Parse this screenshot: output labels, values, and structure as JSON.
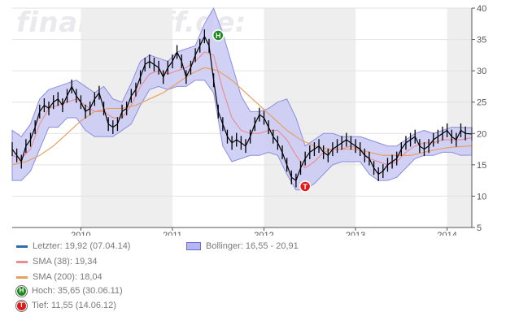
{
  "brand": {
    "watermark": "finanztreff.de:"
  },
  "colors": {
    "band_fill": "#c9c9f5",
    "band_stroke": "#8c8ce0",
    "price": "#000000",
    "sma38": "#e89090",
    "sma200": "#e8a060",
    "last": "#2f6db3",
    "high_marker": "#1a8a1a",
    "low_marker": "#e01a1a",
    "shade": "#eeeeee"
  },
  "legend": {
    "last": "Letzter: 19,92 (07.04.14)",
    "bollinger": "Bollinger: 16,55 - 20,91",
    "sma38": "SMA (38): 19,34",
    "sma200": "SMA (200): 18,04",
    "high": "Hoch: 35,65 (30.06.11)",
    "low": "Tief: 11,55 (14.06.12)",
    "high_marker_label": "H",
    "low_marker_label": "T"
  },
  "chart_data": {
    "type": "line",
    "title": "",
    "xlabel": "",
    "ylabel": "",
    "ylim": [
      5,
      40
    ],
    "yticks": [
      "5",
      "10",
      "15",
      "20",
      "25",
      "30",
      "35",
      "40"
    ],
    "xticks": [
      "2010",
      "2011",
      "2012",
      "2013",
      "2014"
    ],
    "xlim": [
      2009.25,
      2014.27
    ],
    "shaded_years": [
      [
        2010,
        2011
      ],
      [
        2012,
        2013
      ],
      [
        2014,
        2014.27
      ]
    ],
    "grid": true,
    "legend_position": "bottom",
    "series": [
      {
        "key": "price",
        "x": [
          2009.25,
          2009.3,
          2009.35,
          2009.4,
          2009.45,
          2009.5,
          2009.55,
          2009.6,
          2009.65,
          2009.7,
          2009.75,
          2009.8,
          2009.85,
          2009.9,
          2009.95,
          2010.0,
          2010.05,
          2010.1,
          2010.15,
          2010.2,
          2010.25,
          2010.3,
          2010.35,
          2010.4,
          2010.45,
          2010.5,
          2010.55,
          2010.6,
          2010.65,
          2010.7,
          2010.75,
          2010.8,
          2010.85,
          2010.9,
          2010.95,
          2011.0,
          2011.05,
          2011.1,
          2011.15,
          2011.2,
          2011.25,
          2011.3,
          2011.35,
          2011.4,
          2011.45,
          2011.5,
          2011.55,
          2011.6,
          2011.65,
          2011.7,
          2011.75,
          2011.8,
          2011.85,
          2011.9,
          2011.95,
          2012.0,
          2012.05,
          2012.1,
          2012.15,
          2012.2,
          2012.25,
          2012.3,
          2012.35,
          2012.4,
          2012.45,
          2012.5,
          2012.55,
          2012.6,
          2012.65,
          2012.7,
          2012.75,
          2012.8,
          2012.85,
          2012.9,
          2012.95,
          2013.0,
          2013.05,
          2013.1,
          2013.15,
          2013.2,
          2013.25,
          2013.3,
          2013.35,
          2013.4,
          2013.45,
          2013.5,
          2013.55,
          2013.6,
          2013.65,
          2013.7,
          2013.75,
          2013.8,
          2013.85,
          2013.9,
          2013.95,
          2014.0,
          2014.05,
          2014.1,
          2014.15,
          2014.2,
          2014.27
        ],
        "y": [
          17.5,
          16.5,
          15.5,
          18.0,
          19.0,
          21.0,
          23.5,
          24.5,
          24.0,
          25.0,
          25.5,
          24.5,
          26.0,
          27.5,
          26.0,
          25.0,
          23.5,
          24.0,
          25.5,
          26.5,
          24.0,
          21.5,
          21.0,
          21.5,
          23.5,
          24.0,
          26.0,
          27.0,
          29.0,
          31.0,
          31.5,
          31.0,
          30.5,
          29.0,
          30.5,
          31.5,
          33.0,
          31.5,
          29.0,
          30.5,
          32.5,
          34.0,
          35.5,
          34.0,
          28.5,
          23.5,
          21.5,
          19.5,
          18.5,
          19.0,
          18.5,
          18.0,
          19.5,
          21.5,
          23.0,
          22.5,
          21.0,
          19.5,
          18.5,
          17.0,
          15.0,
          13.0,
          12.5,
          14.5,
          16.0,
          17.0,
          17.5,
          18.0,
          17.0,
          16.5,
          17.5,
          18.0,
          18.5,
          19.0,
          18.5,
          18.0,
          17.5,
          16.5,
          16.0,
          14.5,
          13.5,
          14.0,
          15.0,
          15.5,
          16.0,
          17.5,
          18.5,
          19.0,
          19.5,
          18.0,
          17.5,
          18.0,
          19.0,
          19.5,
          20.0,
          20.5,
          19.5,
          19.0,
          20.5,
          20.0,
          19.92
        ]
      },
      {
        "key": "bollinger_upper",
        "x": [
          2009.25,
          2009.35,
          2009.45,
          2009.55,
          2009.65,
          2009.75,
          2009.85,
          2009.95,
          2010.05,
          2010.15,
          2010.25,
          2010.35,
          2010.45,
          2010.55,
          2010.65,
          2010.75,
          2010.85,
          2010.95,
          2011.05,
          2011.15,
          2011.25,
          2011.35,
          2011.45,
          2011.55,
          2011.65,
          2011.75,
          2011.85,
          2011.95,
          2012.05,
          2012.15,
          2012.25,
          2012.35,
          2012.45,
          2012.55,
          2012.65,
          2012.75,
          2012.85,
          2012.95,
          2013.05,
          2013.15,
          2013.25,
          2013.35,
          2013.45,
          2013.55,
          2013.65,
          2013.75,
          2013.85,
          2013.95,
          2014.05,
          2014.15,
          2014.27
        ],
        "y": [
          20.5,
          19.5,
          21.5,
          25.5,
          27.0,
          27.5,
          28.0,
          28.5,
          27.5,
          26.5,
          27.5,
          25.5,
          25.0,
          28.0,
          31.5,
          32.5,
          32.0,
          31.5,
          33.0,
          33.5,
          34.0,
          37.5,
          40.0,
          36.0,
          31.0,
          26.0,
          23.5,
          23.5,
          24.0,
          25.0,
          25.5,
          22.5,
          18.0,
          19.0,
          20.0,
          20.0,
          19.5,
          19.5,
          19.5,
          19.0,
          18.5,
          18.0,
          18.0,
          19.0,
          20.0,
          20.5,
          20.0,
          20.5,
          21.0,
          21.0,
          20.91
        ]
      },
      {
        "key": "bollinger_lower",
        "x": [
          2009.25,
          2009.35,
          2009.45,
          2009.55,
          2009.65,
          2009.75,
          2009.85,
          2009.95,
          2010.05,
          2010.15,
          2010.25,
          2010.35,
          2010.45,
          2010.55,
          2010.65,
          2010.75,
          2010.85,
          2010.95,
          2011.05,
          2011.15,
          2011.25,
          2011.35,
          2011.45,
          2011.55,
          2011.65,
          2011.75,
          2011.85,
          2011.95,
          2012.05,
          2012.15,
          2012.25,
          2012.35,
          2012.45,
          2012.55,
          2012.65,
          2012.75,
          2012.85,
          2012.95,
          2013.05,
          2013.15,
          2013.25,
          2013.35,
          2013.45,
          2013.55,
          2013.65,
          2013.75,
          2013.85,
          2013.95,
          2014.05,
          2014.15,
          2014.27
        ],
        "y": [
          12.5,
          12.5,
          14.0,
          17.5,
          21.0,
          21.0,
          22.5,
          22.5,
          20.5,
          19.5,
          19.5,
          19.5,
          20.5,
          21.5,
          24.5,
          27.0,
          27.5,
          27.0,
          27.5,
          27.5,
          28.5,
          28.5,
          26.5,
          18.0,
          15.5,
          16.0,
          16.5,
          16.5,
          17.0,
          16.5,
          13.5,
          11.0,
          11.0,
          12.0,
          13.5,
          15.0,
          15.5,
          15.5,
          15.5,
          13.5,
          12.5,
          12.5,
          13.0,
          14.5,
          16.0,
          16.5,
          16.5,
          17.0,
          17.0,
          16.5,
          16.55
        ]
      },
      {
        "key": "sma38",
        "x": [
          2009.25,
          2009.35,
          2009.45,
          2009.55,
          2009.65,
          2009.75,
          2009.85,
          2009.95,
          2010.05,
          2010.15,
          2010.25,
          2010.35,
          2010.45,
          2010.55,
          2010.65,
          2010.75,
          2010.85,
          2010.95,
          2011.05,
          2011.15,
          2011.25,
          2011.35,
          2011.45,
          2011.55,
          2011.65,
          2011.75,
          2011.85,
          2011.95,
          2012.05,
          2012.15,
          2012.25,
          2012.35,
          2012.45,
          2012.55,
          2012.65,
          2012.75,
          2012.85,
          2012.95,
          2013.05,
          2013.15,
          2013.25,
          2013.35,
          2013.45,
          2013.55,
          2013.65,
          2013.75,
          2013.85,
          2013.95,
          2014.05,
          2014.15,
          2014.27
        ],
        "y": [
          16.5,
          16.0,
          17.5,
          21.5,
          24.0,
          24.5,
          25.0,
          25.5,
          24.5,
          23.5,
          23.5,
          22.5,
          22.5,
          24.5,
          27.5,
          29.5,
          30.0,
          29.5,
          30.0,
          30.5,
          31.5,
          33.0,
          32.5,
          27.0,
          22.5,
          20.5,
          20.0,
          20.0,
          20.5,
          20.5,
          19.0,
          16.5,
          14.5,
          15.5,
          17.0,
          17.5,
          17.5,
          18.0,
          17.5,
          16.0,
          15.5,
          15.0,
          15.5,
          17.0,
          18.0,
          18.5,
          18.5,
          19.0,
          19.0,
          19.0,
          19.34
        ]
      },
      {
        "key": "sma200",
        "x": [
          2009.25,
          2009.4,
          2009.55,
          2009.7,
          2009.85,
          2010.0,
          2010.15,
          2010.3,
          2010.45,
          2010.6,
          2010.75,
          2010.9,
          2011.05,
          2011.2,
          2011.35,
          2011.5,
          2011.65,
          2011.8,
          2011.95,
          2012.1,
          2012.25,
          2012.4,
          2012.55,
          2012.7,
          2012.85,
          2013.0,
          2013.15,
          2013.3,
          2013.45,
          2013.6,
          2013.75,
          2013.9,
          2014.05,
          2014.27
        ],
        "y": [
          15.0,
          15.5,
          16.5,
          18.0,
          20.0,
          22.0,
          23.5,
          24.0,
          24.0,
          24.5,
          25.5,
          26.5,
          28.0,
          29.5,
          30.5,
          30.0,
          28.5,
          26.5,
          24.5,
          22.5,
          20.5,
          19.0,
          18.0,
          17.5,
          17.5,
          17.5,
          17.0,
          16.5,
          16.5,
          16.5,
          17.0,
          17.5,
          17.8,
          18.04
        ]
      }
    ],
    "markers": [
      {
        "key": "high",
        "x": 2011.5,
        "y": 35.65
      },
      {
        "key": "low",
        "x": 2012.45,
        "y": 11.55
      }
    ]
  }
}
